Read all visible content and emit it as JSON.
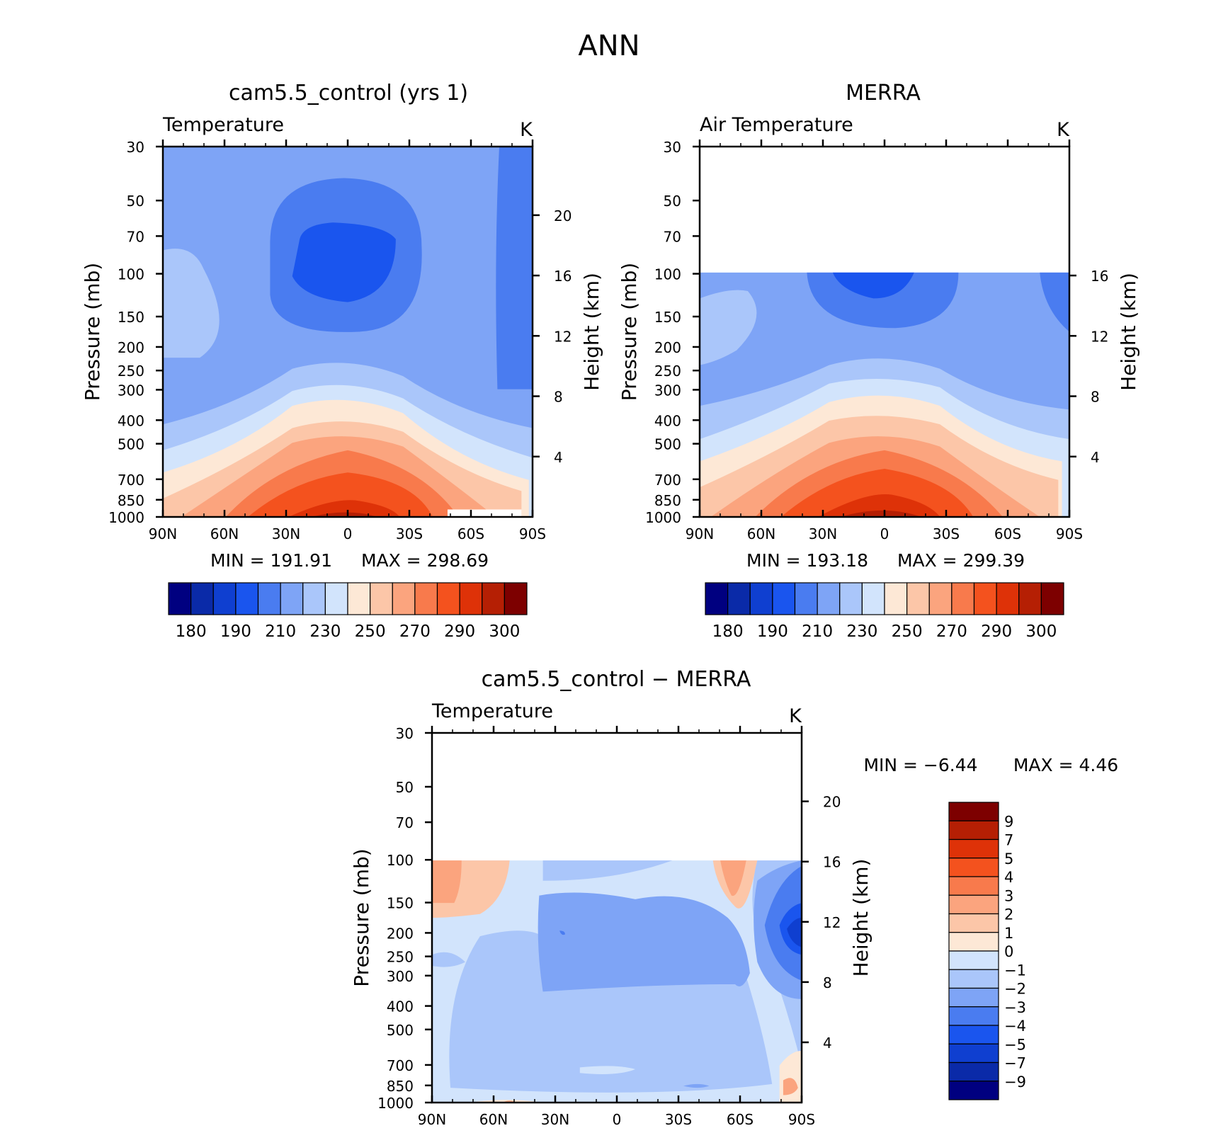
{
  "figure_title": "ANN",
  "chart_data": [
    {
      "type": "heatmap",
      "subtitle": "cam5.5_control (yrs 1)",
      "variable": "Temperature",
      "units": "K",
      "ylabel_left": "Pressure (mb)",
      "ylabel_right": "Height (km)",
      "x_ticks": [
        "90N",
        "60N",
        "30N",
        "0",
        "30S",
        "60S",
        "90S"
      ],
      "x_values": [
        90,
        60,
        30,
        0,
        -30,
        -60,
        -90
      ],
      "y_ticks_pressure": [
        30,
        50,
        70,
        100,
        150,
        200,
        250,
        300,
        400,
        500,
        700,
        850,
        1000
      ],
      "y_ticks_height": [
        20,
        16,
        12,
        8,
        4
      ],
      "ylim": [
        30,
        1000
      ],
      "y_scale": "log",
      "min_label": "MIN = 191.91",
      "max_label": "MAX = 298.69",
      "min": 191.91,
      "max": 298.69,
      "colorbar": {
        "orientation": "horizontal",
        "labels": [
          "180",
          "190",
          "210",
          "230",
          "250",
          "270",
          "290",
          "300"
        ],
        "colors": [
          "#000080",
          "#0a2aa8",
          "#0f3fd0",
          "#1a55ee",
          "#4a7cf0",
          "#7ea4f6",
          "#aac6fa",
          "#d2e4fc",
          "#fde8d6",
          "#fcc6a8",
          "#fba47e",
          "#f87a4c",
          "#f4521e",
          "#de3208",
          "#b51f04",
          "#7d0000"
        ]
      }
    },
    {
      "type": "heatmap",
      "subtitle": "MERRA",
      "variable": "Air Temperature",
      "units": "K",
      "ylabel_left": "Pressure (mb)",
      "ylabel_right": "Height (km)",
      "x_ticks": [
        "90N",
        "60N",
        "30N",
        "0",
        "30S",
        "60S",
        "90S"
      ],
      "x_values": [
        90,
        60,
        30,
        0,
        -30,
        -60,
        -90
      ],
      "y_ticks_pressure": [
        30,
        50,
        70,
        100,
        150,
        200,
        250,
        300,
        400,
        500,
        700,
        850,
        1000
      ],
      "y_ticks_height": [
        16,
        12,
        8,
        4
      ],
      "ylim": [
        30,
        1000
      ],
      "y_scale": "log",
      "data_top_pressure": 100,
      "min_label": "MIN = 193.18",
      "max_label": "MAX = 299.39",
      "min": 193.18,
      "max": 299.39,
      "colorbar": {
        "orientation": "horizontal",
        "labels": [
          "180",
          "190",
          "210",
          "230",
          "250",
          "270",
          "290",
          "300"
        ],
        "colors": [
          "#000080",
          "#0a2aa8",
          "#0f3fd0",
          "#1a55ee",
          "#4a7cf0",
          "#7ea4f6",
          "#aac6fa",
          "#d2e4fc",
          "#fde8d6",
          "#fcc6a8",
          "#fba47e",
          "#f87a4c",
          "#f4521e",
          "#de3208",
          "#b51f04",
          "#7d0000"
        ]
      }
    },
    {
      "type": "heatmap",
      "subtitle": "cam5.5_control − MERRA",
      "variable": "Temperature",
      "units": "K",
      "ylabel_left": "Pressure (mb)",
      "ylabel_right": "Height (km)",
      "x_ticks": [
        "90N",
        "60N",
        "30N",
        "0",
        "30S",
        "60S",
        "90S"
      ],
      "x_values": [
        90,
        60,
        30,
        0,
        -30,
        -60,
        -90
      ],
      "y_ticks_pressure": [
        30,
        50,
        70,
        100,
        150,
        200,
        250,
        300,
        400,
        500,
        700,
        850,
        1000
      ],
      "y_ticks_height": [
        20,
        16,
        12,
        8,
        4
      ],
      "ylim": [
        30,
        1000
      ],
      "y_scale": "log",
      "data_top_pressure": 100,
      "min_label": "MIN = −6.44",
      "max_label": "MAX = 4.46",
      "min": -6.44,
      "max": 4.46,
      "colorbar": {
        "orientation": "vertical",
        "labels": [
          "9",
          "7",
          "5",
          "4",
          "3",
          "2",
          "1",
          "0",
          "−1",
          "−2",
          "−3",
          "−4",
          "−5",
          "−7",
          "−9"
        ],
        "colors": [
          "#7d0000",
          "#b51f04",
          "#de3208",
          "#f4521e",
          "#f87a4c",
          "#fba47e",
          "#fcc6a8",
          "#fde8d6",
          "#d2e4fc",
          "#aac6fa",
          "#7ea4f6",
          "#4a7cf0",
          "#1a55ee",
          "#0f3fd0",
          "#0a2aa8",
          "#000080"
        ]
      }
    }
  ]
}
